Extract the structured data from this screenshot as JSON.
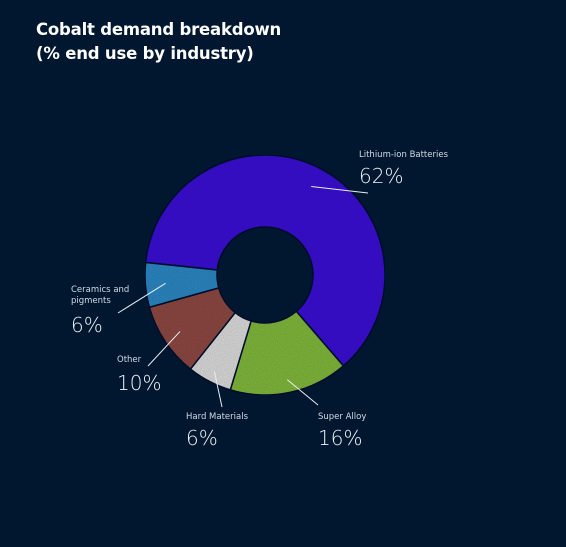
{
  "title_line1": "Cobalt demand breakdown",
  "title_line2": "(% end use by industry)",
  "chart_data": {
    "type": "pie",
    "title": "Cobalt demand breakdown (% end use by industry)",
    "slices": [
      {
        "label": "Lithium-ion Batteries",
        "value": 62,
        "pct_label": "62%",
        "color": "#3b12d0"
      },
      {
        "label": "Super Alloy",
        "value": 16,
        "pct_label": "16%",
        "color": "#80b63e"
      },
      {
        "label": "Hard Materials",
        "value": 6,
        "pct_label": "6%",
        "color": "#d9d9d9"
      },
      {
        "label": "Other",
        "value": 10,
        "pct_label": "10%",
        "color": "#8c4a42"
      },
      {
        "label": "Ceramics and pigments",
        "label_lines": [
          "Ceramics and",
          "pigments"
        ],
        "value": 6,
        "pct_label": "6%",
        "color": "#2e86c1"
      }
    ]
  }
}
